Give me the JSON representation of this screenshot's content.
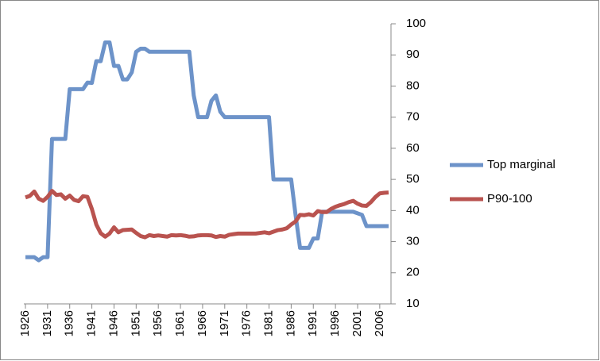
{
  "chart_data": {
    "type": "line",
    "x": [
      1926,
      1927,
      1928,
      1929,
      1930,
      1931,
      1932,
      1933,
      1934,
      1935,
      1936,
      1937,
      1938,
      1939,
      1940,
      1941,
      1942,
      1943,
      1944,
      1945,
      1946,
      1947,
      1948,
      1949,
      1950,
      1951,
      1952,
      1953,
      1954,
      1955,
      1956,
      1957,
      1958,
      1959,
      1960,
      1961,
      1962,
      1963,
      1964,
      1965,
      1966,
      1967,
      1968,
      1969,
      1970,
      1971,
      1972,
      1973,
      1974,
      1975,
      1976,
      1977,
      1978,
      1979,
      1980,
      1981,
      1982,
      1983,
      1984,
      1985,
      1986,
      1987,
      1988,
      1989,
      1990,
      1991,
      1992,
      1993,
      1994,
      1995,
      1996,
      1997,
      1998,
      1999,
      2000,
      2001,
      2002,
      2003,
      2004,
      2005,
      2006,
      2007,
      2008
    ],
    "series": [
      {
        "name": "Top marginal",
        "color": "#6d93c9",
        "values": [
          25,
          25,
          25,
          24,
          25,
          25,
          63,
          63,
          63,
          63,
          79,
          79,
          79,
          79,
          81.1,
          81,
          88,
          88,
          94,
          94,
          86.45,
          86.45,
          82.13,
          82.13,
          84.36,
          91,
          92,
          92,
          91,
          91,
          91,
          91,
          91,
          91,
          91,
          91,
          91,
          91,
          77,
          70,
          70,
          70,
          75.25,
          77,
          71.75,
          70,
          70,
          70,
          70,
          70,
          70,
          70,
          70,
          70,
          70,
          70,
          50,
          50,
          50,
          50,
          50,
          38.5,
          28,
          28,
          28,
          31,
          31,
          39.6,
          39.6,
          39.6,
          39.6,
          39.6,
          39.6,
          39.6,
          39.6,
          39.1,
          38.6,
          35,
          35,
          35,
          35,
          35,
          35
        ]
      },
      {
        "name": "P90-100",
        "color": "#b9534f",
        "values": [
          44.2,
          44.7,
          46.1,
          43.8,
          43.1,
          44.4,
          46.3,
          45.0,
          45.2,
          43.8,
          44.8,
          43.4,
          43.0,
          44.6,
          44.4,
          40.5,
          35.5,
          32.7,
          31.6,
          32.6,
          34.6,
          33.0,
          33.7,
          33.8,
          33.9,
          32.8,
          31.8,
          31.4,
          32.1,
          31.8,
          32.0,
          31.8,
          31.6,
          32.1,
          32.0,
          32.1,
          31.9,
          31.6,
          31.7,
          32.0,
          32.1,
          32.1,
          32.0,
          31.5,
          31.8,
          31.6,
          32.2,
          32.4,
          32.6,
          32.6,
          32.6,
          32.6,
          32.6,
          32.8,
          33.0,
          32.7,
          33.2,
          33.7,
          33.9,
          34.3,
          35.5,
          36.5,
          38.6,
          38.5,
          38.8,
          38.4,
          39.8,
          39.5,
          39.5,
          40.5,
          41.2,
          41.7,
          42.1,
          42.7,
          43.1,
          42.2,
          41.6,
          41.5,
          42.7,
          44.3,
          45.5,
          45.7,
          45.8
        ]
      }
    ],
    "xlim": [
      1926,
      2008
    ],
    "xticks": [
      1926,
      1931,
      1936,
      1941,
      1946,
      1951,
      1956,
      1961,
      1966,
      1971,
      1976,
      1981,
      1986,
      1991,
      1996,
      2001,
      2006
    ],
    "ylim": [
      10,
      100
    ],
    "yticks": [
      10,
      20,
      30,
      40,
      50,
      60,
      70,
      80,
      90,
      100
    ],
    "legend": "right"
  }
}
